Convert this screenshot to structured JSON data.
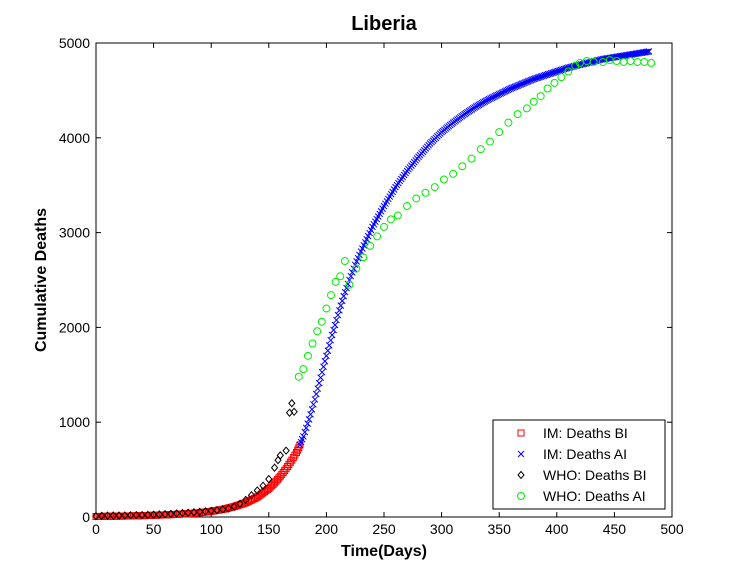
{
  "chart_data": {
    "type": "scatter",
    "title": "Liberia",
    "xlabel": "Time(Days)",
    "ylabel": "Cumulative Deaths",
    "xlim": [
      0,
      500
    ],
    "ylim": [
      0,
      5000
    ],
    "xticks": [
      0,
      50,
      100,
      150,
      200,
      250,
      300,
      350,
      400,
      450,
      500
    ],
    "yticks": [
      0,
      1000,
      2000,
      3000,
      4000,
      5000
    ],
    "grid": false,
    "legend_position": "bottom-right",
    "series": [
      {
        "name": "IM: Deaths BI",
        "marker": "square",
        "color": "#ff0000",
        "points": [
          [
            0,
            5
          ],
          [
            10,
            7
          ],
          [
            20,
            9
          ],
          [
            30,
            11
          ],
          [
            40,
            14
          ],
          [
            50,
            18
          ],
          [
            60,
            22
          ],
          [
            70,
            28
          ],
          [
            80,
            35
          ],
          [
            90,
            45
          ],
          [
            100,
            60
          ],
          [
            110,
            80
          ],
          [
            120,
            110
          ],
          [
            130,
            150
          ],
          [
            140,
            210
          ],
          [
            145,
            255
          ],
          [
            150,
            300
          ],
          [
            155,
            360
          ],
          [
            160,
            430
          ],
          [
            165,
            510
          ],
          [
            170,
            600
          ],
          [
            174,
            680
          ],
          [
            176,
            730
          ],
          [
            177,
            760
          ]
        ]
      },
      {
        "name": "IM: Deaths AI",
        "marker": "x",
        "color": "#0000ff",
        "points": [
          [
            177,
            760
          ],
          [
            180,
            850
          ],
          [
            185,
            1030
          ],
          [
            190,
            1240
          ],
          [
            195,
            1470
          ],
          [
            200,
            1700
          ],
          [
            205,
            1920
          ],
          [
            210,
            2130
          ],
          [
            215,
            2330
          ],
          [
            220,
            2500
          ],
          [
            225,
            2660
          ],
          [
            230,
            2800
          ],
          [
            240,
            3060
          ],
          [
            250,
            3280
          ],
          [
            260,
            3480
          ],
          [
            270,
            3650
          ],
          [
            280,
            3800
          ],
          [
            290,
            3940
          ],
          [
            300,
            4060
          ],
          [
            310,
            4160
          ],
          [
            320,
            4250
          ],
          [
            330,
            4330
          ],
          [
            340,
            4400
          ],
          [
            350,
            4460
          ],
          [
            360,
            4520
          ],
          [
            370,
            4570
          ],
          [
            380,
            4620
          ],
          [
            390,
            4660
          ],
          [
            400,
            4700
          ],
          [
            410,
            4740
          ],
          [
            420,
            4770
          ],
          [
            430,
            4800
          ],
          [
            440,
            4830
          ],
          [
            450,
            4850
          ],
          [
            460,
            4870
          ],
          [
            470,
            4890
          ],
          [
            480,
            4910
          ]
        ]
      },
      {
        "name": "WHO: Deaths BI",
        "marker": "diamond",
        "color": "#000000",
        "points": [
          [
            0,
            10
          ],
          [
            5,
            12
          ],
          [
            10,
            14
          ],
          [
            15,
            15
          ],
          [
            20,
            15
          ],
          [
            25,
            16
          ],
          [
            30,
            18
          ],
          [
            35,
            20
          ],
          [
            40,
            20
          ],
          [
            45,
            22
          ],
          [
            50,
            25
          ],
          [
            55,
            27
          ],
          [
            60,
            30
          ],
          [
            65,
            33
          ],
          [
            70,
            38
          ],
          [
            75,
            42
          ],
          [
            80,
            45
          ],
          [
            85,
            50
          ],
          [
            90,
            55
          ],
          [
            95,
            60
          ],
          [
            100,
            65
          ],
          [
            105,
            72
          ],
          [
            110,
            80
          ],
          [
            115,
            90
          ],
          [
            120,
            110
          ],
          [
            125,
            140
          ],
          [
            130,
            180
          ],
          [
            135,
            230
          ],
          [
            140,
            280
          ],
          [
            145,
            330
          ],
          [
            150,
            400
          ],
          [
            155,
            520
          ],
          [
            158,
            600
          ],
          [
            160,
            650
          ],
          [
            165,
            700
          ],
          [
            168,
            1100
          ],
          [
            170,
            1200
          ],
          [
            172,
            1110
          ]
        ]
      },
      {
        "name": "WHO: Deaths AI",
        "marker": "circle",
        "color": "#00ee00",
        "points": [
          [
            176,
            1480
          ],
          [
            180,
            1560
          ],
          [
            184,
            1700
          ],
          [
            188,
            1830
          ],
          [
            192,
            1960
          ],
          [
            196,
            2060
          ],
          [
            200,
            2200
          ],
          [
            204,
            2340
          ],
          [
            208,
            2480
          ],
          [
            212,
            2540
          ],
          [
            216,
            2700
          ],
          [
            220,
            2450
          ],
          [
            226,
            2620
          ],
          [
            232,
            2740
          ],
          [
            238,
            2860
          ],
          [
            244,
            2960
          ],
          [
            250,
            3060
          ],
          [
            256,
            3140
          ],
          [
            262,
            3180
          ],
          [
            270,
            3280
          ],
          [
            278,
            3360
          ],
          [
            286,
            3420
          ],
          [
            294,
            3480
          ],
          [
            302,
            3560
          ],
          [
            310,
            3620
          ],
          [
            318,
            3700
          ],
          [
            326,
            3780
          ],
          [
            334,
            3880
          ],
          [
            342,
            3960
          ],
          [
            350,
            4060
          ],
          [
            358,
            4160
          ],
          [
            366,
            4250
          ],
          [
            374,
            4310
          ],
          [
            380,
            4380
          ],
          [
            386,
            4440
          ],
          [
            392,
            4520
          ],
          [
            398,
            4580
          ],
          [
            404,
            4640
          ],
          [
            410,
            4700
          ],
          [
            416,
            4760
          ],
          [
            420,
            4790
          ],
          [
            426,
            4810
          ],
          [
            432,
            4800
          ],
          [
            440,
            4800
          ],
          [
            446,
            4820
          ],
          [
            452,
            4810
          ],
          [
            458,
            4800
          ],
          [
            464,
            4810
          ],
          [
            470,
            4800
          ],
          [
            476,
            4800
          ],
          [
            482,
            4790
          ]
        ]
      }
    ]
  }
}
